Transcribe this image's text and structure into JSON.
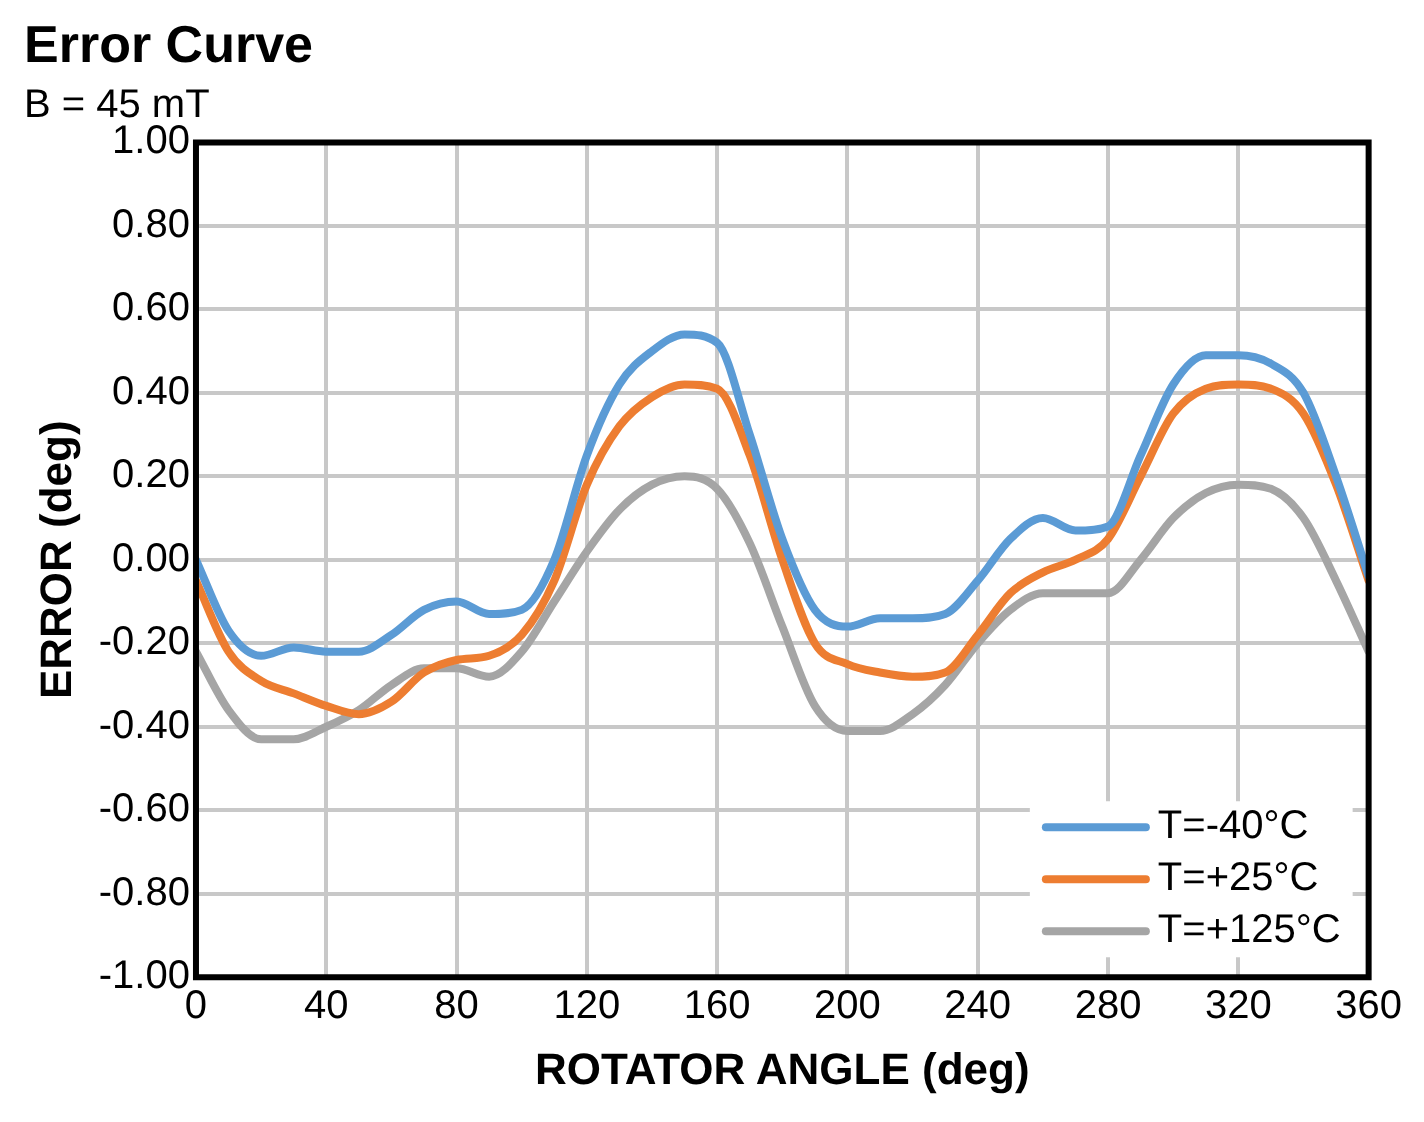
{
  "chart_data": {
    "type": "line",
    "title": "Error Curve",
    "subtitle": "B = 45 mT",
    "xlabel": "ROTATOR ANGLE (deg)",
    "ylabel": "ERROR (deg)",
    "x": [
      0,
      10,
      20,
      30,
      40,
      50,
      60,
      70,
      80,
      90,
      100,
      110,
      120,
      130,
      140,
      150,
      160,
      170,
      180,
      190,
      200,
      210,
      220,
      230,
      240,
      250,
      260,
      270,
      280,
      290,
      300,
      310,
      320,
      330,
      340,
      350,
      360
    ],
    "series": [
      {
        "name": "T=-40°C",
        "color": "#5b9bd5",
        "values": [
          0.0,
          -0.17,
          -0.23,
          -0.21,
          -0.22,
          -0.22,
          -0.18,
          -0.12,
          -0.1,
          -0.13,
          -0.12,
          0.0,
          0.25,
          0.42,
          0.5,
          0.54,
          0.52,
          0.3,
          0.05,
          -0.12,
          -0.16,
          -0.14,
          -0.14,
          -0.13,
          -0.05,
          0.05,
          0.1,
          0.07,
          0.08,
          0.25,
          0.42,
          0.49,
          0.49,
          0.47,
          0.4,
          0.2,
          -0.04
        ]
      },
      {
        "name": "T=+25°C",
        "color": "#ed7d31",
        "values": [
          -0.05,
          -0.22,
          -0.29,
          -0.32,
          -0.35,
          -0.37,
          -0.34,
          -0.27,
          -0.24,
          -0.23,
          -0.18,
          -0.05,
          0.18,
          0.32,
          0.39,
          0.42,
          0.41,
          0.25,
          0.0,
          -0.2,
          -0.25,
          -0.27,
          -0.28,
          -0.27,
          -0.18,
          -0.08,
          -0.03,
          0.0,
          0.05,
          0.2,
          0.35,
          0.41,
          0.42,
          0.41,
          0.35,
          0.18,
          -0.05
        ]
      },
      {
        "name": "T=+125°C",
        "color": "#a5a5a5",
        "values": [
          -0.22,
          -0.36,
          -0.43,
          -0.43,
          -0.4,
          -0.36,
          -0.3,
          -0.26,
          -0.26,
          -0.28,
          -0.22,
          -0.1,
          0.02,
          0.12,
          0.18,
          0.2,
          0.17,
          0.04,
          -0.16,
          -0.35,
          -0.41,
          -0.41,
          -0.37,
          -0.3,
          -0.2,
          -0.12,
          -0.08,
          -0.08,
          -0.08,
          0.0,
          0.1,
          0.16,
          0.18,
          0.17,
          0.1,
          -0.05,
          -0.22
        ]
      }
    ],
    "xlim": [
      0,
      360
    ],
    "xticks": [
      0,
      40,
      80,
      120,
      160,
      200,
      240,
      280,
      320,
      360
    ],
    "ylim": [
      -1,
      1
    ],
    "yticks": [
      {
        "value": -1,
        "label": "-1.00"
      },
      {
        "value": -0.8,
        "label": "-0.80"
      },
      {
        "value": -0.6,
        "label": "-0.60"
      },
      {
        "value": -0.4,
        "label": "-0.40"
      },
      {
        "value": -0.2,
        "label": "-0.20"
      },
      {
        "value": 0,
        "label": "0.00"
      },
      {
        "value": 0.2,
        "label": "0.20"
      },
      {
        "value": 0.4,
        "label": "0.40"
      },
      {
        "value": 0.6,
        "label": "0.60"
      },
      {
        "value": 0.8,
        "label": "0.80"
      },
      {
        "value": 1,
        "label": "1.00"
      }
    ],
    "grid": true,
    "legend": "bottom right",
    "marker": "none",
    "line_style": "solid"
  }
}
